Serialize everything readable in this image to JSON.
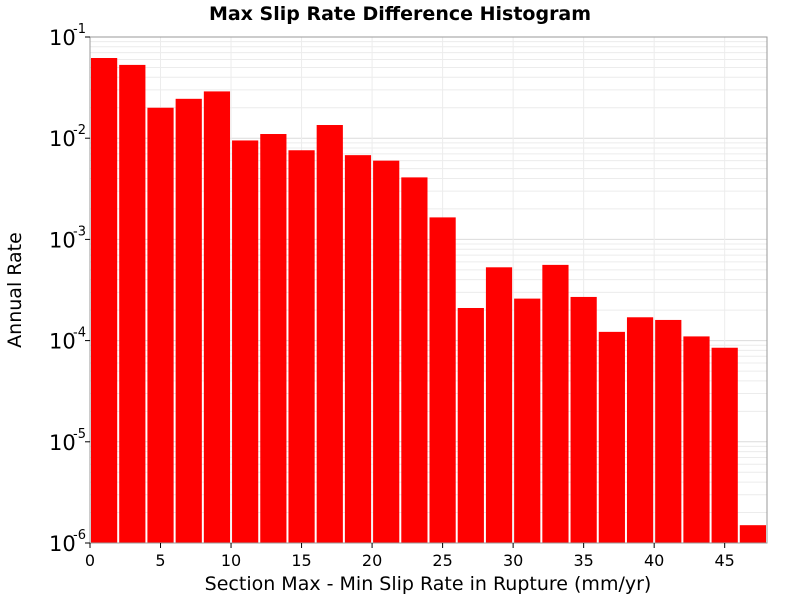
{
  "chart_data": {
    "type": "bar",
    "title": "Max Slip Rate Difference Histogram",
    "xlabel": "Section Max - Min Slip Rate in Rupture (mm/yr)",
    "ylabel": "Annual Rate",
    "y_scale": "log",
    "ylim": [
      1e-06,
      0.1
    ],
    "xlim": [
      0,
      48
    ],
    "bin_width": 2,
    "grid": true,
    "bar_color": "#ff0000",
    "x_ticks": [
      "0",
      "5",
      "10",
      "15",
      "20",
      "25",
      "30",
      "35",
      "40",
      "45"
    ],
    "y_ticks": [
      {
        "base": "10",
        "exp": "-6"
      },
      {
        "base": "10",
        "exp": "-5"
      },
      {
        "base": "10",
        "exp": "-4"
      },
      {
        "base": "10",
        "exp": "-3"
      },
      {
        "base": "10",
        "exp": "-2"
      },
      {
        "base": "10",
        "exp": "-1"
      }
    ],
    "x": [
      1,
      3,
      5,
      7,
      9,
      11,
      13,
      15,
      17,
      19,
      21,
      23,
      25,
      27,
      29,
      31,
      33,
      35,
      37,
      39,
      41,
      43,
      45,
      47
    ],
    "values": [
      0.062,
      0.053,
      0.02,
      0.0245,
      0.029,
      0.0095,
      0.011,
      0.0076,
      0.0135,
      0.0068,
      0.006,
      0.0041,
      0.00165,
      0.00021,
      0.00053,
      0.00026,
      0.00056,
      0.00027,
      0.000122,
      0.00017,
      0.00016,
      0.00011,
      8.5e-05,
      1.5e-06
    ]
  }
}
